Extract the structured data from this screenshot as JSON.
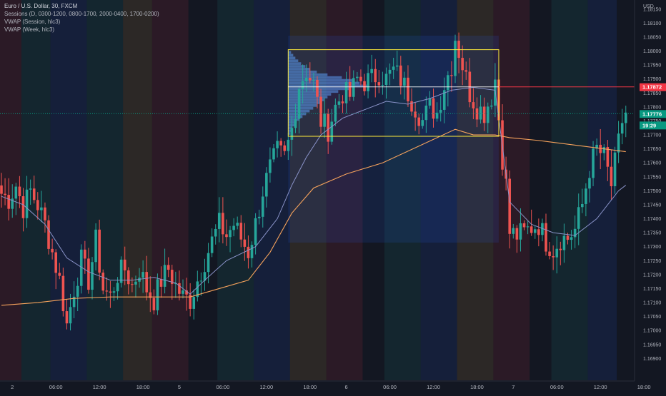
{
  "legend": {
    "main": "Euro / U.S. Dollar, 30, FXCM",
    "sessions": "Sessions (D, 0300-1200, 0800-1700, 2000-0400, 1700-0200)",
    "vwap_session": "VWAP (Session, hlc3)",
    "vwap_week": "VWAP (Week, hlc3)"
  },
  "colors": {
    "background": "#131722",
    "up": "#26a69a",
    "down": "#ef5350",
    "vwap_week": "#f7a35c",
    "vwap_session": "#8a93c9",
    "box": "#ffeb3b",
    "hline": "#f23645",
    "last_price": "#089981"
  },
  "chart_data": {
    "type": "candlestick",
    "symbol": "EURUSD",
    "timeframe": "30",
    "currency_label": "USD",
    "ylim": [
      1.1686,
      1.1817
    ],
    "y_ticks": [
      "1.18150",
      "1.18100",
      "1.18050",
      "1.18000",
      "1.17950",
      "1.17900",
      "1.17850",
      "1.17800",
      "1.17750",
      "1.17700",
      "1.17650",
      "1.17600",
      "1.17550",
      "1.17500",
      "1.17450",
      "1.17400",
      "1.17350",
      "1.17300",
      "1.17250",
      "1.17200",
      "1.17150",
      "1.17100",
      "1.17050",
      "1.17000",
      "1.16950",
      "1.16900"
    ],
    "x_ticks": [
      {
        "label": "2",
        "i": 3
      },
      {
        "label": "06:00",
        "i": 15
      },
      {
        "label": "12:00",
        "i": 27
      },
      {
        "label": "18:00",
        "i": 39
      },
      {
        "label": "5",
        "i": 49
      },
      {
        "label": "06:00",
        "i": 61
      },
      {
        "label": "12:00",
        "i": 73
      },
      {
        "label": "18:00",
        "i": 85
      },
      {
        "label": "6",
        "i": 95
      },
      {
        "label": "06:00",
        "i": 107
      },
      {
        "label": "12:00",
        "i": 119
      },
      {
        "label": "18:00",
        "i": 131
      },
      {
        "label": "7",
        "i": 141
      },
      {
        "label": "06:00",
        "i": 153
      },
      {
        "label": "12:00",
        "i": 165
      },
      {
        "label": "18:00",
        "i": 177
      }
    ],
    "price_labels": [
      {
        "text": "1.17872",
        "value": 1.17872,
        "color": "#f23645"
      },
      {
        "text": "1.17776",
        "value": 1.17776,
        "color": "#089981"
      },
      {
        "text": "19:29",
        "value": 1.17735,
        "color": "#089981"
      }
    ],
    "hline": 1.17872,
    "volume_profile": {
      "box": {
        "i0": 79,
        "i1": 137,
        "high": 1.18005,
        "low": 1.17695
      },
      "poc": 1.17872,
      "bars": [
        [
          1.17995,
          4
        ],
        [
          1.17985,
          7
        ],
        [
          1.17975,
          10
        ],
        [
          1.17965,
          14
        ],
        [
          1.17955,
          18
        ],
        [
          1.17945,
          24
        ],
        [
          1.17935,
          30
        ],
        [
          1.17925,
          40
        ],
        [
          1.17915,
          55
        ],
        [
          1.17905,
          75
        ],
        [
          1.17895,
          90
        ],
        [
          1.17885,
          100
        ],
        [
          1.17875,
          110
        ],
        [
          1.17865,
          85
        ],
        [
          1.17855,
          70
        ],
        [
          1.17845,
          60
        ],
        [
          1.17835,
          55
        ],
        [
          1.17825,
          50
        ],
        [
          1.17815,
          45
        ],
        [
          1.17805,
          40
        ],
        [
          1.17795,
          35
        ],
        [
          1.17785,
          30
        ],
        [
          1.17775,
          25
        ],
        [
          1.17765,
          20
        ],
        [
          1.17755,
          16
        ],
        [
          1.17745,
          12
        ],
        [
          1.17735,
          9
        ],
        [
          1.17725,
          6
        ],
        [
          1.17715,
          4
        ],
        [
          1.17705,
          3
        ]
      ]
    },
    "sessions": [
      {
        "i0": 0,
        "i1": 6,
        "color": "#f23645"
      },
      {
        "i0": 6,
        "i1": 14,
        "color": "#26a69a"
      },
      {
        "i0": 14,
        "i1": 24,
        "color": "#2962ff"
      },
      {
        "i0": 24,
        "i1": 34,
        "color": "#26a69a"
      },
      {
        "i0": 34,
        "i1": 42,
        "color": "#ffb74d"
      },
      {
        "i0": 42,
        "i1": 52,
        "color": "#f23645"
      },
      {
        "i0": 60,
        "i1": 70,
        "color": "#26a69a"
      },
      {
        "i0": 70,
        "i1": 80,
        "color": "#2962ff"
      },
      {
        "i0": 80,
        "i1": 90,
        "color": "#ffb74d"
      },
      {
        "i0": 90,
        "i1": 100,
        "color": "#f23645"
      },
      {
        "i0": 106,
        "i1": 116,
        "color": "#26a69a"
      },
      {
        "i0": 116,
        "i1": 126,
        "color": "#2962ff"
      },
      {
        "i0": 126,
        "i1": 136,
        "color": "#ffb74d"
      },
      {
        "i0": 136,
        "i1": 146,
        "color": "#f23645"
      },
      {
        "i0": 152,
        "i1": 162,
        "color": "#26a69a"
      },
      {
        "i0": 162,
        "i1": 170,
        "color": "#2962ff"
      }
    ],
    "anchors": [
      [
        0,
        1.1749
      ],
      [
        2,
        1.1747
      ],
      [
        4,
        1.1752
      ],
      [
        6,
        1.1744
      ],
      [
        8,
        1.175
      ],
      [
        10,
        1.1745
      ],
      [
        12,
        1.1738
      ],
      [
        14,
        1.1728
      ],
      [
        16,
        1.1718
      ],
      [
        18,
        1.1702
      ],
      [
        20,
        1.1715
      ],
      [
        22,
        1.1725
      ],
      [
        24,
        1.1718
      ],
      [
        26,
        1.1732
      ],
      [
        28,
        1.1715
      ],
      [
        30,
        1.1712
      ],
      [
        32,
        1.172
      ],
      [
        34,
        1.1722
      ],
      [
        36,
        1.1716
      ],
      [
        38,
        1.1722
      ],
      [
        40,
        1.1715
      ],
      [
        42,
        1.1711
      ],
      [
        44,
        1.1718
      ],
      [
        46,
        1.1722
      ],
      [
        48,
        1.1716
      ],
      [
        50,
        1.1712
      ],
      [
        52,
        1.1711
      ],
      [
        54,
        1.1718
      ],
      [
        56,
        1.1725
      ],
      [
        58,
        1.1732
      ],
      [
        60,
        1.1738
      ],
      [
        62,
        1.1734
      ],
      [
        64,
        1.1738
      ],
      [
        66,
        1.1733
      ],
      [
        68,
        1.1728
      ],
      [
        70,
        1.1738
      ],
      [
        72,
        1.175
      ],
      [
        74,
        1.1758
      ],
      [
        76,
        1.1764
      ],
      [
        78,
        1.1762
      ],
      [
        80,
        1.1772
      ],
      [
        82,
        1.1788
      ],
      [
        84,
        1.1793
      ],
      [
        86,
        1.1788
      ],
      [
        88,
        1.1775
      ],
      [
        90,
        1.1772
      ],
      [
        92,
        1.178
      ],
      [
        94,
        1.1785
      ],
      [
        96,
        1.1784
      ],
      [
        98,
        1.179
      ],
      [
        100,
        1.1789
      ],
      [
        102,
        1.179
      ],
      [
        104,
        1.1792
      ],
      [
        106,
        1.179
      ],
      [
        108,
        1.1793
      ],
      [
        110,
        1.179
      ],
      [
        112,
        1.1785
      ],
      [
        114,
        1.178
      ],
      [
        116,
        1.1775
      ],
      [
        118,
        1.178
      ],
      [
        120,
        1.1778
      ],
      [
        122,
        1.1788
      ],
      [
        124,
        1.1795
      ],
      [
        125,
        1.1805
      ],
      [
        127,
        1.1795
      ],
      [
        128,
        1.179
      ],
      [
        129,
        1.1785
      ],
      [
        131,
        1.178
      ],
      [
        133,
        1.1778
      ],
      [
        135,
        1.1784
      ],
      [
        136,
        1.179
      ],
      [
        138,
        1.1762
      ],
      [
        139,
        1.1752
      ],
      [
        140,
        1.1735
      ],
      [
        142,
        1.1734
      ],
      [
        144,
        1.1735
      ],
      [
        146,
        1.1737
      ],
      [
        148,
        1.1738
      ],
      [
        150,
        1.1732
      ],
      [
        152,
        1.1729
      ],
      [
        154,
        1.1733
      ],
      [
        156,
        1.1733
      ],
      [
        158,
        1.1736
      ],
      [
        160,
        1.1745
      ],
      [
        162,
        1.1758
      ],
      [
        164,
        1.1765
      ],
      [
        166,
        1.1762
      ],
      [
        168,
        1.1752
      ],
      [
        170,
        1.1767
      ],
      [
        171,
        1.1775
      ],
      [
        172,
        1.1778
      ]
    ],
    "vwap_week": [
      [
        0,
        1.1709
      ],
      [
        10,
        1.171
      ],
      [
        20,
        1.17115
      ],
      [
        30,
        1.1712
      ],
      [
        45,
        1.1712
      ],
      [
        52,
        1.1712
      ],
      [
        60,
        1.1715
      ],
      [
        68,
        1.1718
      ],
      [
        74,
        1.1728
      ],
      [
        80,
        1.1742
      ],
      [
        86,
        1.1751
      ],
      [
        95,
        1.1756
      ],
      [
        105,
        1.176
      ],
      [
        115,
        1.1766
      ],
      [
        125,
        1.1772
      ],
      [
        130,
        1.177
      ],
      [
        136,
        1.177
      ],
      [
        140,
        1.1769
      ],
      [
        148,
        1.1768
      ],
      [
        160,
        1.1766
      ],
      [
        172,
        1.1764
      ]
    ],
    "vwap_session": [
      [
        0,
        1.1748
      ],
      [
        6,
        1.1745
      ],
      [
        12,
        1.1738
      ],
      [
        18,
        1.1726
      ],
      [
        24,
        1.1721
      ],
      [
        30,
        1.1718
      ],
      [
        36,
        1.1718
      ],
      [
        42,
        1.1719
      ],
      [
        48,
        1.1717
      ],
      [
        52,
        1.1713
      ],
      [
        56,
        1.1718
      ],
      [
        62,
        1.1725
      ],
      [
        70,
        1.173
      ],
      [
        76,
        1.174
      ],
      [
        80,
        1.1752
      ],
      [
        84,
        1.1762
      ],
      [
        88,
        1.177
      ],
      [
        94,
        1.1776
      ],
      [
        100,
        1.1779
      ],
      [
        106,
        1.1782
      ],
      [
        112,
        1.1781
      ],
      [
        118,
        1.1783
      ],
      [
        124,
        1.1786
      ],
      [
        130,
        1.1787
      ],
      [
        136,
        1.1786
      ],
      [
        140,
        1.1746
      ],
      [
        146,
        1.1738
      ],
      [
        152,
        1.1735
      ],
      [
        158,
        1.1734
      ],
      [
        164,
        1.174
      ],
      [
        170,
        1.175
      ],
      [
        172,
        1.1752
      ]
    ]
  }
}
